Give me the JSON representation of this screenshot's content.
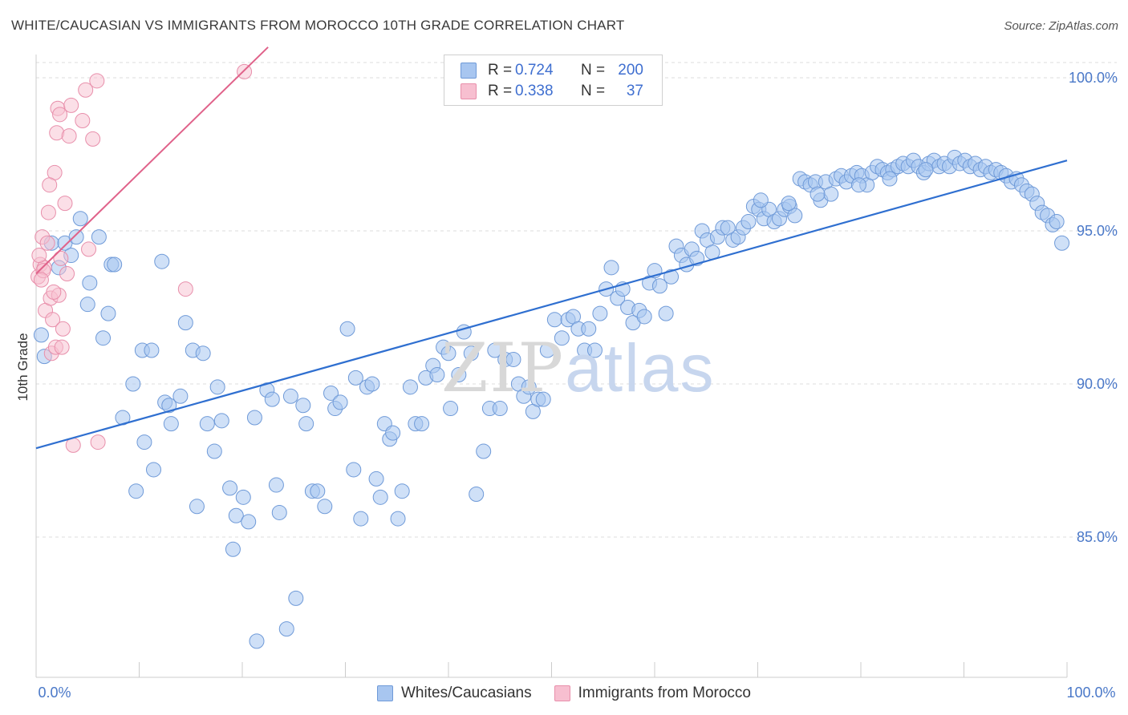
{
  "title": "WHITE/CAUCASIAN VS IMMIGRANTS FROM MOROCCO 10TH GRADE CORRELATION CHART",
  "source": "Source: ZipAtlas.com",
  "watermark": {
    "zip": "ZIP",
    "atlas": "atlas"
  },
  "colors": {
    "blue": "#a8c6f0",
    "blue_stroke": "#6f9ad8",
    "blue_line": "#2f6fd0",
    "pink": "#f7bfd0",
    "pink_stroke": "#e88fab",
    "pink_line": "#e0628a",
    "tick_text": "#4a78c8",
    "grid": "#dddddd"
  },
  "legend": {
    "series": [
      {
        "r_label": "R =",
        "r_value": "0.724",
        "n_label": "N =",
        "n_value": "200"
      },
      {
        "r_label": "R =",
        "r_value": "0.338",
        "n_label": "N =",
        "n_value": "37"
      }
    ]
  },
  "bottom_legend": [
    "Whites/Caucasians",
    "Immigrants from Morocco"
  ],
  "chart_data": {
    "type": "scatter",
    "title": "WHITE/CAUCASIAN VS IMMIGRANTS FROM MOROCCO 10TH GRADE CORRELATION CHART",
    "xlabel": "",
    "ylabel": "10th Grade",
    "xlim": [
      0,
      100
    ],
    "ylim": [
      80.5,
      101.5
    ],
    "x_tick_labels": [
      "0.0%",
      "100.0%"
    ],
    "y_ticks": [
      85,
      90,
      95,
      100
    ],
    "y_tick_labels": [
      "85.0%",
      "90.0%",
      "95.0%",
      "100.0%"
    ],
    "grid": true,
    "series": [
      {
        "name": "Whites/Caucasians",
        "r": 0.724,
        "n": 200,
        "trend": {
          "x": [
            0,
            100
          ],
          "y": [
            87.9,
            97.3
          ]
        },
        "points": [
          [
            0.5,
            91.6
          ],
          [
            0.8,
            90.9
          ],
          [
            1.5,
            94.6
          ],
          [
            2.2,
            93.8
          ],
          [
            2.8,
            94.6
          ],
          [
            3.4,
            94.2
          ],
          [
            3.9,
            94.8
          ],
          [
            4.3,
            95.4
          ],
          [
            5.2,
            93.3
          ],
          [
            5.0,
            92.6
          ],
          [
            6.1,
            94.8
          ],
          [
            7.3,
            93.9
          ],
          [
            7.6,
            93.9
          ],
          [
            6.5,
            91.5
          ],
          [
            7.0,
            92.3
          ],
          [
            9.4,
            90.0
          ],
          [
            8.4,
            88.9
          ],
          [
            10.3,
            91.1
          ],
          [
            10.5,
            88.1
          ],
          [
            9.7,
            86.5
          ],
          [
            11.2,
            91.1
          ],
          [
            12.5,
            89.4
          ],
          [
            11.4,
            87.2
          ],
          [
            12.2,
            94.0
          ],
          [
            12.9,
            89.3
          ],
          [
            13.1,
            88.7
          ],
          [
            14.0,
            89.6
          ],
          [
            14.5,
            92.0
          ],
          [
            15.2,
            91.1
          ],
          [
            15.6,
            86.0
          ],
          [
            16.2,
            91.0
          ],
          [
            16.6,
            88.7
          ],
          [
            17.3,
            87.8
          ],
          [
            17.6,
            89.9
          ],
          [
            18.0,
            88.8
          ],
          [
            18.8,
            86.6
          ],
          [
            19.1,
            84.6
          ],
          [
            19.4,
            85.7
          ],
          [
            20.1,
            86.3
          ],
          [
            20.6,
            85.5
          ],
          [
            21.2,
            88.9
          ],
          [
            21.4,
            81.6
          ],
          [
            22.4,
            89.8
          ],
          [
            22.9,
            89.5
          ],
          [
            23.3,
            86.7
          ],
          [
            23.6,
            85.8
          ],
          [
            24.3,
            82.0
          ],
          [
            25.2,
            83.0
          ],
          [
            24.7,
            89.6
          ],
          [
            25.9,
            89.3
          ],
          [
            26.2,
            88.7
          ],
          [
            26.8,
            86.5
          ],
          [
            27.3,
            86.5
          ],
          [
            28.0,
            86.0
          ],
          [
            28.6,
            89.7
          ],
          [
            29.0,
            89.2
          ],
          [
            29.5,
            89.4
          ],
          [
            30.2,
            91.8
          ],
          [
            31.0,
            90.2
          ],
          [
            30.8,
            87.2
          ],
          [
            31.5,
            85.6
          ],
          [
            32.1,
            89.9
          ],
          [
            32.6,
            90.0
          ],
          [
            33.0,
            86.9
          ],
          [
            33.4,
            86.3
          ],
          [
            33.8,
            88.7
          ],
          [
            34.3,
            88.2
          ],
          [
            34.6,
            88.4
          ],
          [
            35.1,
            85.6
          ],
          [
            35.5,
            86.5
          ],
          [
            36.3,
            89.9
          ],
          [
            36.8,
            88.7
          ],
          [
            37.4,
            88.7
          ],
          [
            37.8,
            90.2
          ],
          [
            38.5,
            90.6
          ],
          [
            38.9,
            90.3
          ],
          [
            39.5,
            91.2
          ],
          [
            40.0,
            91.0
          ],
          [
            40.2,
            89.2
          ],
          [
            41.0,
            90.3
          ],
          [
            41.5,
            91.7
          ],
          [
            42.2,
            91.0
          ],
          [
            42.7,
            86.4
          ],
          [
            43.4,
            87.8
          ],
          [
            44.0,
            89.2
          ],
          [
            44.5,
            91.1
          ],
          [
            45.0,
            89.2
          ],
          [
            45.5,
            90.8
          ],
          [
            46.3,
            90.8
          ],
          [
            46.8,
            90.0
          ],
          [
            47.3,
            89.6
          ],
          [
            47.8,
            89.9
          ],
          [
            48.2,
            89.1
          ],
          [
            48.7,
            89.5
          ],
          [
            49.2,
            89.5
          ],
          [
            49.6,
            91.1
          ],
          [
            50.3,
            92.1
          ],
          [
            51.0,
            91.5
          ],
          [
            51.6,
            92.1
          ],
          [
            52.1,
            92.2
          ],
          [
            52.6,
            91.8
          ],
          [
            53.2,
            91.1
          ],
          [
            53.6,
            91.8
          ],
          [
            54.2,
            91.1
          ],
          [
            54.7,
            92.3
          ],
          [
            55.3,
            93.1
          ],
          [
            55.8,
            93.8
          ],
          [
            56.4,
            92.8
          ],
          [
            56.9,
            93.1
          ],
          [
            57.4,
            92.5
          ],
          [
            57.9,
            92.0
          ],
          [
            58.5,
            92.4
          ],
          [
            59.0,
            92.2
          ],
          [
            59.5,
            93.3
          ],
          [
            60.0,
            93.7
          ],
          [
            60.5,
            93.2
          ],
          [
            61.1,
            92.3
          ],
          [
            61.6,
            93.5
          ],
          [
            62.1,
            94.5
          ],
          [
            62.6,
            94.2
          ],
          [
            63.1,
            93.9
          ],
          [
            63.6,
            94.4
          ],
          [
            64.1,
            94.1
          ],
          [
            64.6,
            95.0
          ],
          [
            65.1,
            94.7
          ],
          [
            65.6,
            94.3
          ],
          [
            66.1,
            94.8
          ],
          [
            66.6,
            95.1
          ],
          [
            67.1,
            95.1
          ],
          [
            67.6,
            94.7
          ],
          [
            68.1,
            94.8
          ],
          [
            68.6,
            95.1
          ],
          [
            69.1,
            95.3
          ],
          [
            69.6,
            95.8
          ],
          [
            70.1,
            95.7
          ],
          [
            70.6,
            95.4
          ],
          [
            71.1,
            95.7
          ],
          [
            71.6,
            95.3
          ],
          [
            72.1,
            95.4
          ],
          [
            72.6,
            95.7
          ],
          [
            73.1,
            95.8
          ],
          [
            73.6,
            95.5
          ],
          [
            74.1,
            96.7
          ],
          [
            74.6,
            96.6
          ],
          [
            75.1,
            96.5
          ],
          [
            75.6,
            96.6
          ],
          [
            76.1,
            96.0
          ],
          [
            76.6,
            96.6
          ],
          [
            77.1,
            96.2
          ],
          [
            77.6,
            96.7
          ],
          [
            78.1,
            96.8
          ],
          [
            78.6,
            96.6
          ],
          [
            79.1,
            96.8
          ],
          [
            79.6,
            96.9
          ],
          [
            80.1,
            96.8
          ],
          [
            80.6,
            96.5
          ],
          [
            81.1,
            96.9
          ],
          [
            81.6,
            97.1
          ],
          [
            82.1,
            97.0
          ],
          [
            82.6,
            96.9
          ],
          [
            83.1,
            97.0
          ],
          [
            83.6,
            97.1
          ],
          [
            84.1,
            97.2
          ],
          [
            84.6,
            97.1
          ],
          [
            85.1,
            97.3
          ],
          [
            85.6,
            97.1
          ],
          [
            86.1,
            96.9
          ],
          [
            86.6,
            97.2
          ],
          [
            87.1,
            97.3
          ],
          [
            87.6,
            97.1
          ],
          [
            88.1,
            97.2
          ],
          [
            88.6,
            97.1
          ],
          [
            89.1,
            97.4
          ],
          [
            89.6,
            97.2
          ],
          [
            90.1,
            97.3
          ],
          [
            90.6,
            97.1
          ],
          [
            91.1,
            97.2
          ],
          [
            91.6,
            97.0
          ],
          [
            92.1,
            97.1
          ],
          [
            92.6,
            96.9
          ],
          [
            93.1,
            97.0
          ],
          [
            93.6,
            96.9
          ],
          [
            94.1,
            96.8
          ],
          [
            94.6,
            96.6
          ],
          [
            95.1,
            96.7
          ],
          [
            95.6,
            96.5
          ],
          [
            96.1,
            96.3
          ],
          [
            96.6,
            96.2
          ],
          [
            97.1,
            95.9
          ],
          [
            97.6,
            95.6
          ],
          [
            98.1,
            95.5
          ],
          [
            98.6,
            95.2
          ],
          [
            99.0,
            95.3
          ],
          [
            99.5,
            94.6
          ],
          [
            70.3,
            96.0
          ],
          [
            75.8,
            96.2
          ],
          [
            73.0,
            95.9
          ],
          [
            79.8,
            96.5
          ],
          [
            82.8,
            96.7
          ],
          [
            86.3,
            97.0
          ]
        ]
      },
      {
        "name": "Immigrants from Morocco",
        "r": 0.338,
        "n": 37,
        "trend": {
          "x": [
            0,
            22.5
          ],
          "y": [
            93.6,
            101.0
          ]
        },
        "points": [
          [
            0.2,
            93.5
          ],
          [
            0.4,
            93.9
          ],
          [
            0.6,
            94.8
          ],
          [
            0.8,
            93.8
          ],
          [
            0.9,
            92.4
          ],
          [
            1.1,
            94.6
          ],
          [
            1.2,
            95.6
          ],
          [
            1.4,
            92.8
          ],
          [
            1.5,
            91.0
          ],
          [
            1.6,
            92.1
          ],
          [
            1.8,
            96.9
          ],
          [
            1.9,
            91.2
          ],
          [
            2.0,
            98.2
          ],
          [
            2.1,
            99.0
          ],
          [
            2.2,
            92.9
          ],
          [
            2.3,
            98.8
          ],
          [
            2.4,
            94.1
          ],
          [
            2.6,
            91.8
          ],
          [
            2.8,
            95.9
          ],
          [
            3.0,
            93.6
          ],
          [
            3.2,
            98.1
          ],
          [
            3.4,
            99.1
          ],
          [
            3.6,
            88.0
          ],
          [
            4.5,
            98.6
          ],
          [
            4.8,
            99.6
          ],
          [
            5.1,
            94.4
          ],
          [
            5.5,
            98.0
          ],
          [
            5.9,
            99.9
          ],
          [
            6.0,
            88.1
          ],
          [
            14.5,
            93.1
          ],
          [
            20.2,
            100.2
          ],
          [
            0.7,
            93.7
          ],
          [
            1.3,
            96.5
          ],
          [
            1.7,
            93.0
          ],
          [
            2.5,
            91.2
          ],
          [
            0.3,
            94.2
          ],
          [
            0.5,
            93.4
          ]
        ]
      }
    ]
  }
}
